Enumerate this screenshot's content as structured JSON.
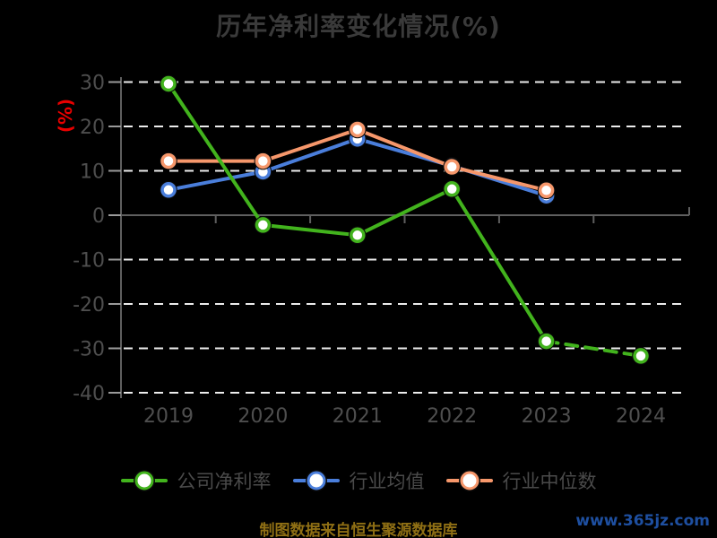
{
  "page": {
    "background": "#000000"
  },
  "header": {
    "title": "历年净利率变化情况(%)"
  },
  "chart_data": {
    "type": "line",
    "title": "历年净利率变化情况(%)",
    "xlabel": "",
    "ylabel": "(%)",
    "categories": [
      "2019",
      "2020",
      "2021",
      "2022",
      "2023",
      "2024"
    ],
    "series": [
      {
        "name": "公司净利率",
        "color": "#42b31d",
        "values": [
          29.6,
          -2.2,
          -4.5,
          5.9,
          -28.4,
          -31.7
        ],
        "last_segment_dashed": true
      },
      {
        "name": "行业均值",
        "color": "#4a7edb",
        "values": [
          5.7,
          9.8,
          17.2,
          11.1,
          4.4,
          null
        ],
        "last_segment_dashed": false
      },
      {
        "name": "行业中位数",
        "color": "#f6976b",
        "values": [
          12.2,
          12.2,
          19.3,
          10.9,
          5.6,
          null
        ],
        "last_segment_dashed": false
      }
    ],
    "ylim": [
      -40,
      30
    ],
    "yticks": [
      30,
      20,
      10,
      0,
      -10,
      -20,
      -30,
      -40
    ],
    "grid": "horizontal-dashed",
    "legend_position": "bottom",
    "marker": "circle-white-fill",
    "colors": {
      "grid": "#ececec",
      "axis": "#5f5f5f",
      "tick_label": "#4e4e4e",
      "title": "#3a3a3a",
      "ylabel": "#e80000",
      "legend_text": "#4a4a4a"
    }
  },
  "footer": {
    "source_text": "制图数据来自恒生聚源数据库",
    "source_color": "#8f6f14",
    "watermark": "www.365jz.com",
    "watermark_color": "#1e4fa0"
  }
}
